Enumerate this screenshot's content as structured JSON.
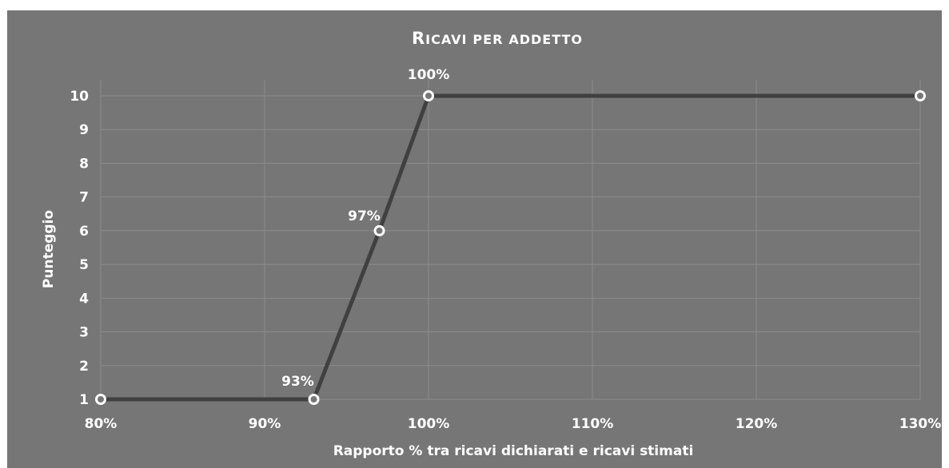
{
  "chart_data": {
    "type": "line",
    "title": "Ricavi per addetto",
    "xlabel": "Rapporto % tra ricavi dichiarati e ricavi stimati",
    "ylabel": "Punteggio",
    "xlim": [
      80,
      130
    ],
    "ylim": [
      1,
      10
    ],
    "x_ticks": [
      "80%",
      "90%",
      "100%",
      "110%",
      "120%",
      "130%"
    ],
    "y_ticks": [
      "1",
      "2",
      "3",
      "4",
      "5",
      "6",
      "7",
      "8",
      "9",
      "10"
    ],
    "grid": true,
    "series": [
      {
        "x": [
          80,
          93,
          97,
          100,
          130
        ],
        "y": [
          1,
          1,
          6,
          10,
          10
        ],
        "data_labels": [
          "",
          "93%",
          "97%",
          "100%",
          ""
        ]
      }
    ],
    "colors": {
      "background": "#767676",
      "line": "#404040",
      "marker_fill": "#767676",
      "marker_stroke": "#ffffff",
      "grid": "#8c8c8c",
      "text": "#ffffff"
    }
  }
}
